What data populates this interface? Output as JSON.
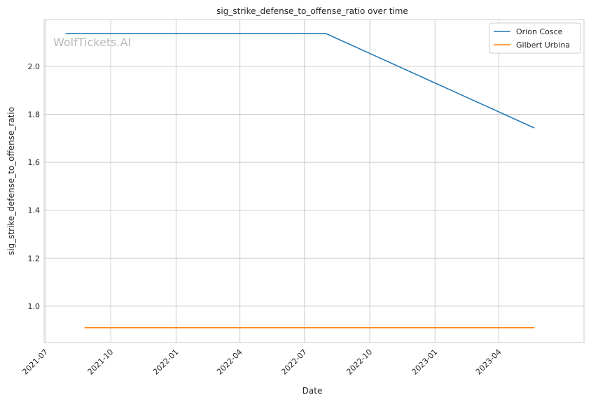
{
  "chart_data": {
    "type": "line",
    "title": "sig_strike_defense_to_offense_ratio over time",
    "xlabel": "Date",
    "ylabel": "sig_strike_defense_to_offense_ratio",
    "watermark": "WolfTickets.AI",
    "xlim": [
      "2021-06-29",
      "2023-07-30"
    ],
    "ylim": [
      0.848,
      2.195
    ],
    "x_ticks": [
      "2021-07",
      "2021-10",
      "2022-01",
      "2022-04",
      "2022-07",
      "2022-10",
      "2023-01",
      "2023-04"
    ],
    "y_ticks": [
      "1.0",
      "1.2",
      "1.4",
      "1.6",
      "1.8",
      "2.0"
    ],
    "grid": true,
    "legend_placement": "top-right",
    "series": [
      {
        "name": "Orion Cosce",
        "color": "#1f77b4",
        "x": [
          "2021-07-29",
          "2022-07-31",
          "2023-05-21"
        ],
        "y": [
          2.137,
          2.137,
          1.743
        ]
      },
      {
        "name": "Gilbert Urbina",
        "color": "#ff7f0e",
        "x": [
          "2021-08-25",
          "2023-05-21"
        ],
        "y": [
          0.91,
          0.91
        ]
      }
    ]
  }
}
